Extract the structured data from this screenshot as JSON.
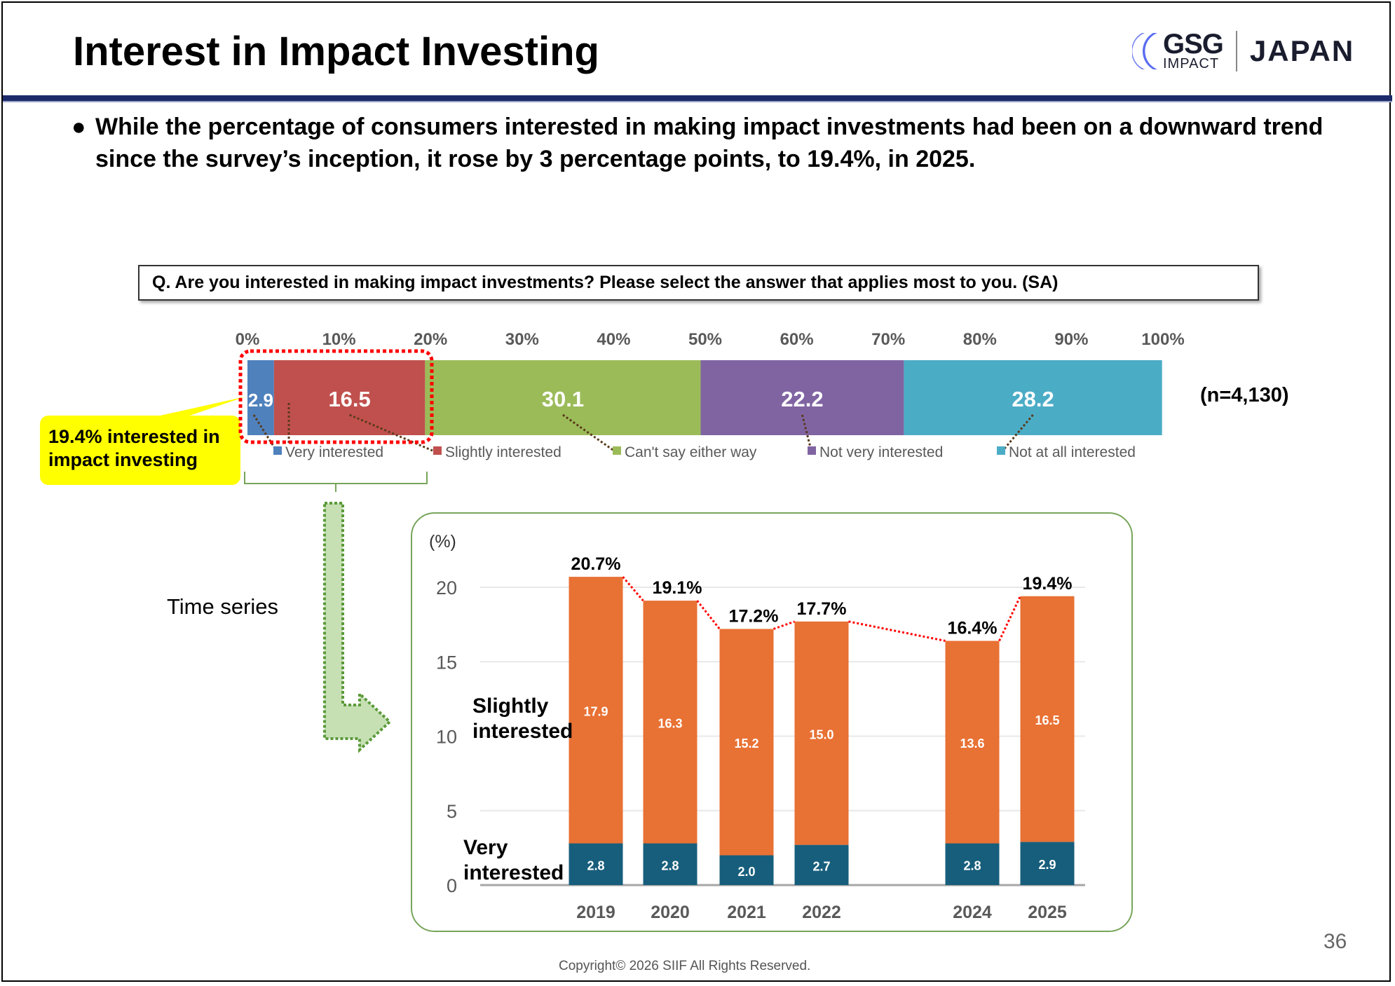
{
  "header": {
    "title": "Interest in Impact Investing",
    "logo": {
      "gsg": "GSG",
      "impact": "IMPACT",
      "japan": "JAPAN"
    }
  },
  "bullet": {
    "symbol": "●",
    "text": "While the percentage of consumers interested in making impact investments had been on a downward trend since the survey’s inception, it rose by 3 percentage points, to 19.4%, in 2025."
  },
  "question": "Q. Are you interested in making impact investments? Please select the answer that applies most to you. (SA)",
  "sample_size": "(n=4,130)",
  "callout": "19.4% interested in impact investing",
  "time_series_label": "Time series",
  "footer": {
    "page_number": "36",
    "copyright": "Copyright© 2026 SIIF All Rights Reserved."
  },
  "colors": {
    "very": "#4F81BD",
    "slightly": "#C0504D",
    "cant_say": "#9BBB59",
    "not_very": "#8064A2",
    "not_at_all": "#4BACC6",
    "ts_very": "#175E7C",
    "ts_slightly": "#E87134",
    "callout": "#FFFF00",
    "navy": "#1C2A6B"
  },
  "chart_data": [
    {
      "type": "bar",
      "orientation": "horizontal-stacked-100",
      "xlim": [
        0,
        100
      ],
      "tick_labels": [
        "0%",
        "10%",
        "20%",
        "30%",
        "40%",
        "50%",
        "60%",
        "70%",
        "80%",
        "90%",
        "100%"
      ],
      "series": [
        {
          "name": "Very interested",
          "value": 2.9,
          "label": "2.9"
        },
        {
          "name": "Slightly interested",
          "value": 16.5,
          "label": "16.5"
        },
        {
          "name": "Can't say either way",
          "value": 30.1,
          "label": "30.1"
        },
        {
          "name": "Not very interested",
          "value": 22.2,
          "label": "22.2"
        },
        {
          "name": "Not at all interested",
          "value": 28.2,
          "label": "28.2"
        }
      ],
      "legend": "bottom"
    },
    {
      "type": "bar",
      "orientation": "vertical-stacked",
      "categories": [
        "2019",
        "2020",
        "2021",
        "2022",
        "",
        "2024",
        "2025"
      ],
      "ylabel": "(%)",
      "ylim": [
        0,
        20
      ],
      "yticks": [
        "0",
        "5",
        "10",
        "15",
        "20"
      ],
      "series": [
        {
          "name": "Very interested",
          "values": [
            2.8,
            2.8,
            2.0,
            2.7,
            null,
            2.8,
            2.9
          ],
          "labels": [
            "2.8",
            "2.8",
            "2.0",
            "2.7",
            "",
            "2.8",
            "2.9"
          ]
        },
        {
          "name": "Slightly interested",
          "values": [
            17.9,
            16.3,
            15.2,
            15.0,
            null,
            13.6,
            16.5
          ],
          "labels": [
            "17.9",
            "16.3",
            "15.2",
            "15.0",
            "",
            "13.6",
            "16.5"
          ]
        }
      ],
      "totals": [
        20.7,
        19.1,
        17.2,
        17.7,
        null,
        16.4,
        19.4
      ],
      "total_labels": [
        "20.7%",
        "19.1%",
        "17.2%",
        "17.7%",
        "",
        "16.4%",
        "19.4%"
      ],
      "series_labels": {
        "slightly": "Slightly interested",
        "very": "Very interested"
      },
      "grid": true
    }
  ]
}
